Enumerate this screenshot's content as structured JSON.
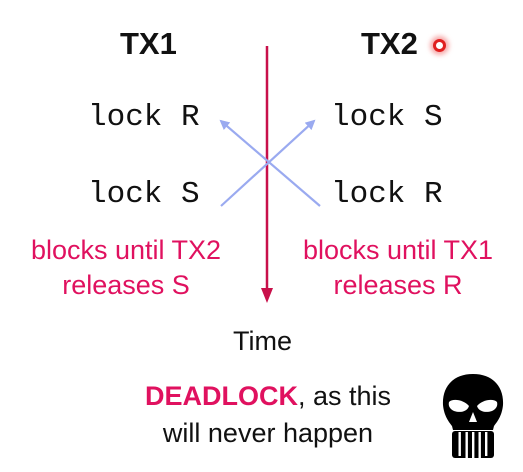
{
  "colors": {
    "accent": "#e0115f",
    "arrow": "#9aaaf0",
    "timeline": "#c8104a",
    "text": "#111111",
    "dot": "#e02020"
  },
  "tx1": {
    "title": "TX1",
    "ops": [
      "lock R",
      "lock S"
    ],
    "note_lines": [
      "blocks until TX2",
      "releases S"
    ]
  },
  "tx2": {
    "title": "TX2",
    "indicator_icon": "red-dot-icon",
    "ops": [
      "lock S",
      "lock R"
    ],
    "note_lines": [
      "blocks until TX1",
      "releases R"
    ]
  },
  "timeline": {
    "label": "Time"
  },
  "conclusion": {
    "highlight": "DEADLOCK",
    "line1_rest": ", as this",
    "line2": "will never happen",
    "icon": "skull-icon"
  }
}
